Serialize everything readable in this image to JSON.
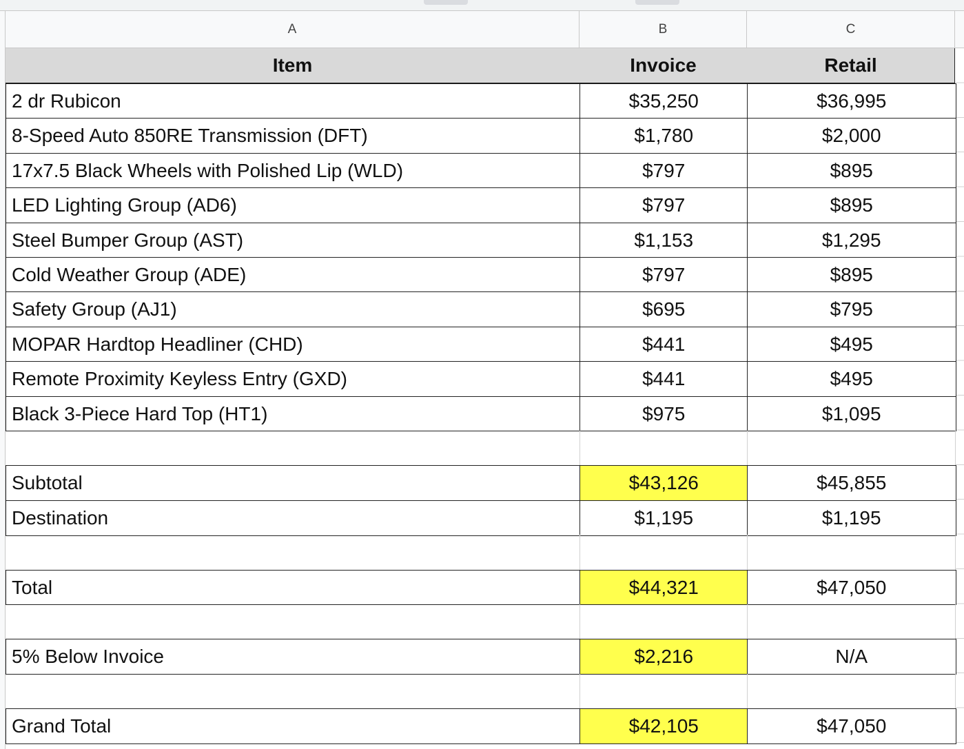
{
  "columns": [
    "A",
    "B",
    "C"
  ],
  "header": [
    "Item",
    "Invoice",
    "Retail"
  ],
  "highlight_color": "#ffff4d",
  "sections": [
    [
      [
        "2 dr Rubicon",
        "$35,250",
        "$36,995"
      ],
      [
        "8-Speed Auto 850RE Transmission (DFT)",
        "$1,780",
        "$2,000"
      ],
      [
        "17x7.5 Black Wheels with Polished Lip (WLD)",
        "$797",
        "$895"
      ],
      [
        "LED Lighting Group (AD6)",
        "$797",
        "$895"
      ],
      [
        "Steel Bumper Group (AST)",
        "$1,153",
        "$1,295"
      ],
      [
        "Cold Weather Group (ADE)",
        "$797",
        "$895"
      ],
      [
        "Safety Group (AJ1)",
        "$695",
        "$795"
      ],
      [
        "MOPAR Hardtop Headliner (CHD)",
        "$441",
        "$495"
      ],
      [
        "Remote Proximity Keyless Entry (GXD)",
        "$441",
        "$495"
      ],
      [
        "Black 3-Piece Hard Top (HT1)",
        "$975",
        "$1,095"
      ]
    ],
    [
      [
        "Subtotal",
        "$43,126",
        "$45,855"
      ],
      [
        "Destination",
        "$1,195",
        "$1,195"
      ]
    ],
    [
      [
        "Total",
        "$44,321",
        "$47,050"
      ]
    ],
    [
      [
        "5% Below Invoice",
        "$2,216",
        "N/A"
      ]
    ],
    [
      [
        "Grand Total",
        "$42,105",
        "$47,050"
      ]
    ]
  ],
  "highlighted_cells": [
    [
      1,
      0,
      1
    ],
    [
      2,
      0,
      1
    ],
    [
      3,
      0,
      1
    ],
    [
      4,
      0,
      1
    ]
  ]
}
